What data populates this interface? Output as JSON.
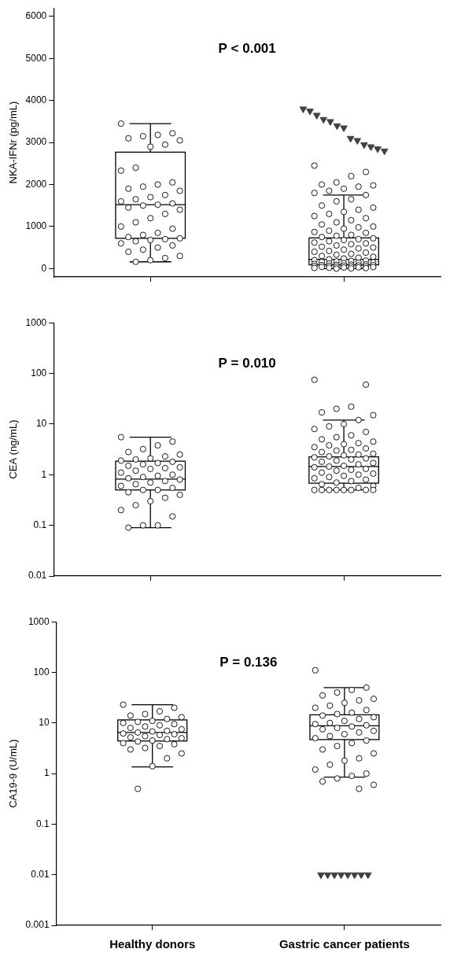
{
  "chart_data": [
    {
      "type": "box",
      "y_label": "NKA-IFNr (pg/mL)",
      "annotation": "P < 0.001",
      "categories": [
        "Healthy donors",
        "Gastric cancer patients"
      ],
      "ylim": [
        -200,
        6200
      ],
      "yticks": [
        0,
        1000,
        2000,
        3000,
        4000,
        5000,
        6000
      ],
      "grid": false,
      "tick_labels": "y",
      "boxes": [
        {
          "whisker_low": 160,
          "q1": 720,
          "median": 1520,
          "q3": 2770,
          "whisker_high": 3450
        },
        {
          "whisker_low": 0,
          "q1": 90,
          "median": 220,
          "q3": 730,
          "whisker_high": 1750
        }
      ],
      "series": [
        {
          "marker": "circle",
          "color": "#ffffff",
          "values": [
            [
              3450,
              3220,
              3180,
              3150,
              3100,
              3050,
              2950,
              2900,
              2400,
              2330,
              2050,
              2000,
              1950,
              1900,
              1850,
              1750,
              1700,
              1650,
              1600,
              1550,
              1520,
              1500,
              1450,
              1400,
              1300,
              1200,
              1100,
              1000,
              950,
              850,
              800,
              750,
              720,
              700,
              680,
              650,
              600,
              550,
              500,
              450,
              400,
              300,
              250,
              200,
              160
            ],
            [
              2450,
              2300,
              2200,
              2050,
              2000,
              1980,
              1950,
              1900,
              1850,
              1800,
              1750,
              1650,
              1600,
              1500,
              1450,
              1400,
              1350,
              1300,
              1250,
              1200,
              1150,
              1100,
              1050,
              1000,
              980,
              950,
              900,
              870,
              850,
              800,
              780,
              750,
              720,
              700,
              680,
              650,
              620,
              600,
              580,
              550,
              520,
              500,
              480,
              450,
              420,
              400,
              380,
              350,
              330,
              300,
              280,
              260,
              240,
              220,
              200,
              190,
              180,
              170,
              160,
              150,
              140,
              130,
              120,
              110,
              100,
              95,
              90,
              85,
              80,
              75,
              70,
              65,
              60,
              55,
              50,
              45,
              40,
              35,
              30,
              25,
              20,
              15,
              10,
              5,
              0
            ]
          ]
        },
        {
          "marker": "triangle-down",
          "color": "#404040",
          "values": [
            [],
            [
              3800,
              3750,
              3650,
              3550,
              3500,
              3400,
              3350,
              3100,
              3050,
              2950,
              2900,
              2850,
              2800
            ]
          ]
        }
      ]
    },
    {
      "type": "box",
      "y_label": "CEA (ng/mL)",
      "annotation": "P = 0.010",
      "categories": [
        "Healthy donors",
        "Gastric cancer patients"
      ],
      "log": "y",
      "ylim": [
        0.01,
        1000
      ],
      "yticks": [
        0.01,
        0.1,
        1,
        10,
        100,
        1000
      ],
      "grid": false,
      "tick_labels": "y",
      "boxes": [
        {
          "whisker_low": 0.09,
          "q1": 0.5,
          "median": 0.82,
          "q3": 1.85,
          "whisker_high": 5.5
        },
        {
          "whisker_low": 0.5,
          "q1": 0.68,
          "median": 1.45,
          "q3": 2.25,
          "whisker_high": 12
        }
      ],
      "series": [
        {
          "marker": "circle",
          "color": "#ffffff",
          "values": [
            [
              5.5,
              4.5,
              3.8,
              3.2,
              2.8,
              2.5,
              2.3,
              2.1,
              2.0,
              1.9,
              1.8,
              1.7,
              1.6,
              1.5,
              1.4,
              1.35,
              1.3,
              1.2,
              1.1,
              1.0,
              0.95,
              0.9,
              0.85,
              0.8,
              0.75,
              0.7,
              0.65,
              0.6,
              0.55,
              0.5,
              0.5,
              0.45,
              0.4,
              0.35,
              0.3,
              0.25,
              0.2,
              0.15,
              0.1,
              0.1,
              0.09
            ],
            [
              75,
              60,
              22,
              20,
              17,
              15,
              12,
              10,
              9,
              8,
              7,
              6,
              5.5,
              5,
              4.5,
              4.2,
              4,
              3.8,
              3.5,
              3.3,
              3.1,
              3,
              2.8,
              2.6,
              2.5,
              2.4,
              2.3,
              2.2,
              2.1,
              2,
              1.9,
              1.8,
              1.7,
              1.6,
              1.5,
              1.45,
              1.4,
              1.3,
              1.25,
              1.2,
              1.1,
              1.05,
              1,
              0.95,
              0.9,
              0.85,
              0.8,
              0.75,
              0.7,
              0.65,
              0.6,
              0.55,
              0.5,
              0.5,
              0.5,
              0.5,
              0.5,
              0.5,
              0.5,
              0.5
            ]
          ]
        }
      ]
    },
    {
      "type": "box",
      "y_label": "CA19-9 (U/mL)",
      "annotation": "P = 0.136",
      "categories": [
        "Healthy donors",
        "Gastric cancer patients"
      ],
      "log": "y",
      "ylim": [
        0.001,
        1000
      ],
      "yticks": [
        0.001,
        0.01,
        0.1,
        1,
        10,
        100,
        1000
      ],
      "grid": false,
      "boxes": [
        {
          "whisker_low": 1.35,
          "q1": 4.4,
          "median": 6.5,
          "q3": 11.5,
          "whisker_high": 23
        },
        {
          "whisker_low": 0.85,
          "q1": 4.7,
          "median": 8.8,
          "q3": 14.5,
          "whisker_high": 50
        }
      ],
      "series": [
        {
          "marker": "circle",
          "color": "#ffffff",
          "values": [
            [
              23,
              20,
              17,
              15,
              14,
              13,
              12,
              11,
              10.5,
              10,
              9.5,
              9,
              8.5,
              8,
              7.5,
              7,
              6.8,
              6.5,
              6.2,
              6,
              5.8,
              5.5,
              5.2,
              5,
              4.8,
              4.5,
              4.3,
              4,
              3.8,
              3.5,
              3.2,
              3,
              2.5,
              2,
              1.4,
              0.5
            ],
            [
              110,
              50,
              45,
              40,
              35,
              30,
              28,
              25,
              22,
              20,
              18,
              16,
              15,
              14,
              13,
              12,
              11,
              10,
              9.5,
              9,
              8.5,
              8,
              7.5,
              7,
              6.5,
              6,
              5.5,
              5,
              4.5,
              4,
              3.5,
              3,
              2.5,
              2,
              1.8,
              1.5,
              1.2,
              1,
              0.9,
              0.8,
              0.7,
              0.6,
              0.5
            ]
          ]
        },
        {
          "marker": "triangle-down",
          "color": "#404040",
          "values": [
            [],
            [
              0.01,
              0.01,
              0.01,
              0.01,
              0.01,
              0.01,
              0.01,
              0.01
            ]
          ]
        }
      ]
    }
  ]
}
